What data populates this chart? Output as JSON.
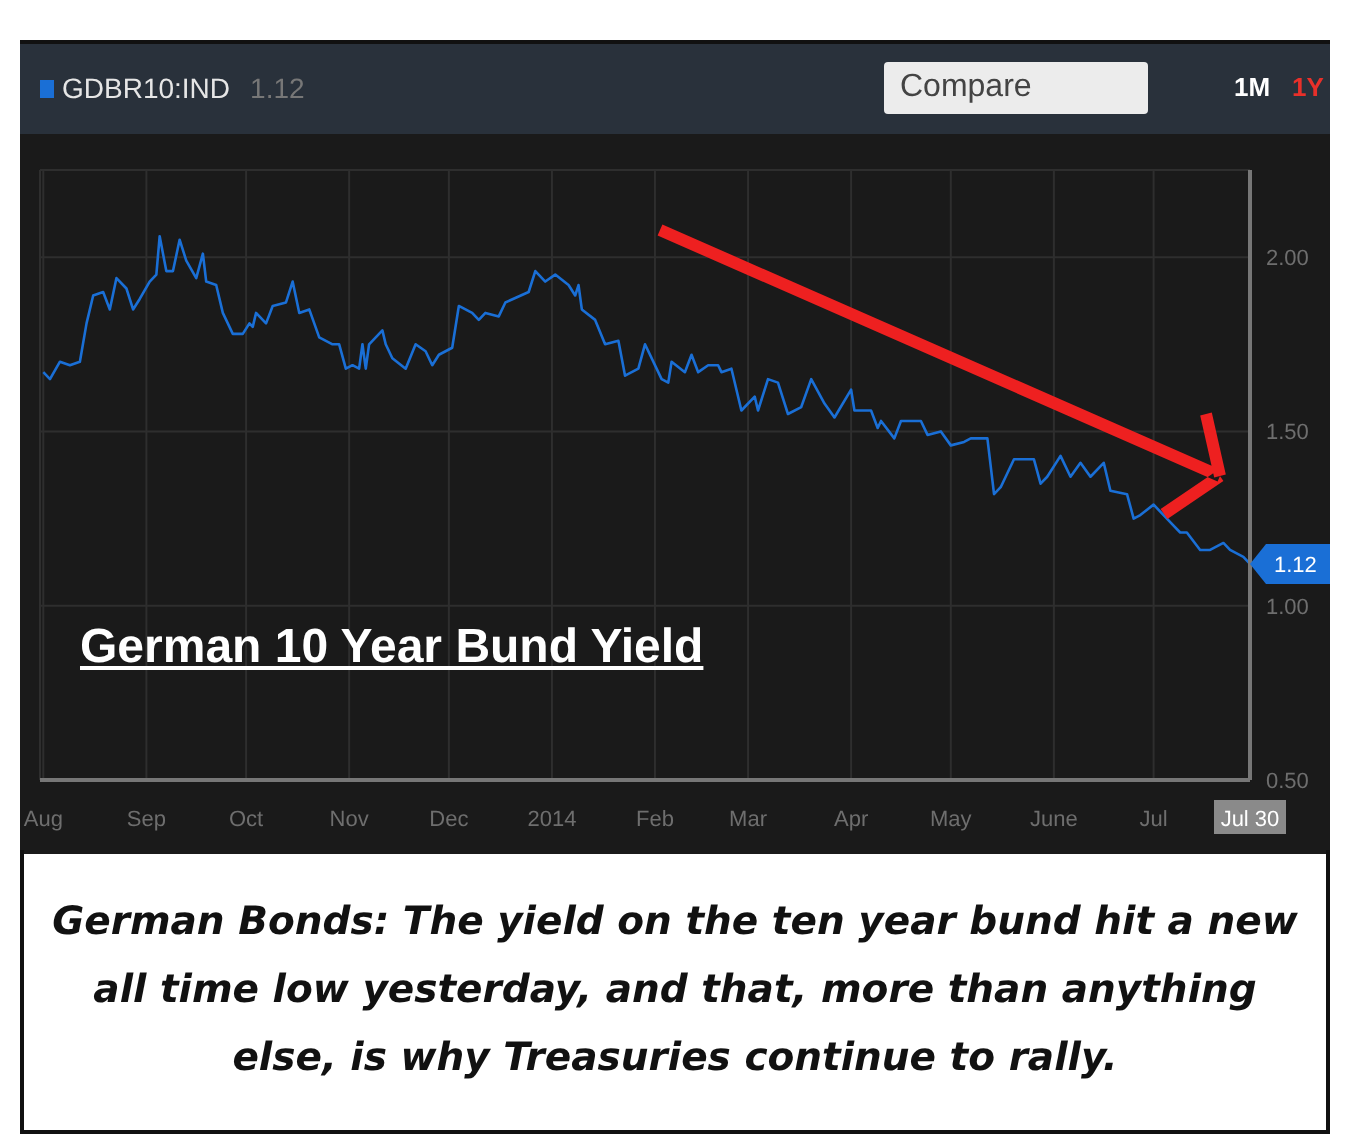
{
  "chart_data": {
    "type": "line",
    "title": "German 10 Year Bund Yield",
    "x": [
      "2013-08-01",
      "2013-08-03",
      "2013-08-06",
      "2013-08-09",
      "2013-08-12",
      "2013-08-14",
      "2013-08-16",
      "2013-08-19",
      "2013-08-21",
      "2013-08-23",
      "2013-08-26",
      "2013-08-28",
      "2013-08-30",
      "2013-09-02",
      "2013-09-04",
      "2013-09-05",
      "2013-09-07",
      "2013-09-09",
      "2013-09-11",
      "2013-09-13",
      "2013-09-16",
      "2013-09-18",
      "2013-09-19",
      "2013-09-22",
      "2013-09-24",
      "2013-09-27",
      "2013-09-30",
      "2013-10-02",
      "2013-10-03",
      "2013-10-04",
      "2013-10-07",
      "2013-10-09",
      "2013-10-13",
      "2013-10-15",
      "2013-10-17",
      "2013-10-20",
      "2013-10-23",
      "2013-10-27",
      "2013-10-29",
      "2013-10-31",
      "2013-11-02",
      "2013-11-04",
      "2013-11-05",
      "2013-11-06",
      "2013-11-07",
      "2013-11-08",
      "2013-11-11",
      "2013-11-12",
      "2013-11-14",
      "2013-11-18",
      "2013-11-21",
      "2013-11-24",
      "2013-11-26",
      "2013-11-28",
      "2013-12-02",
      "2013-12-04",
      "2013-12-08",
      "2013-12-10",
      "2013-12-12",
      "2013-12-16",
      "2013-12-18",
      "2013-12-25",
      "2013-12-27",
      "2013-12-30",
      "2014-01-02",
      "2014-01-06",
      "2014-01-08",
      "2014-01-09",
      "2014-01-10",
      "2014-01-14",
      "2014-01-17",
      "2014-01-21",
      "2014-01-23",
      "2014-01-27",
      "2014-01-29",
      "2014-02-03",
      "2014-02-05",
      "2014-02-06",
      "2014-02-10",
      "2014-02-12",
      "2014-02-14",
      "2014-02-17",
      "2014-02-20",
      "2014-02-21",
      "2014-02-24",
      "2014-02-27",
      "2014-03-03",
      "2014-03-04",
      "2014-03-07",
      "2014-03-10",
      "2014-03-13",
      "2014-03-17",
      "2014-03-20",
      "2014-03-24",
      "2014-03-27",
      "2014-04-01",
      "2014-04-02",
      "2014-04-07",
      "2014-04-09",
      "2014-04-10",
      "2014-04-14",
      "2014-04-16",
      "2014-04-22",
      "2014-04-24",
      "2014-04-28",
      "2014-05-01",
      "2014-05-05",
      "2014-05-07",
      "2014-05-12",
      "2014-05-14",
      "2014-05-16",
      "2014-05-20",
      "2014-05-26",
      "2014-05-28",
      "2014-05-30",
      "2014-06-03",
      "2014-06-06",
      "2014-06-09",
      "2014-06-12",
      "2014-06-16",
      "2014-06-18",
      "2014-06-23",
      "2014-06-25",
      "2014-06-27",
      "2014-07-01",
      "2014-07-03",
      "2014-07-07",
      "2014-07-09",
      "2014-07-11",
      "2014-07-15",
      "2014-07-18",
      "2014-07-22",
      "2014-07-24",
      "2014-07-28",
      "2014-07-30"
    ],
    "series": [
      {
        "name": "GDBR10:IND",
        "color": "#1a6fd6",
        "values": [
          1.67,
          1.65,
          1.7,
          1.69,
          1.7,
          1.81,
          1.89,
          1.9,
          1.85,
          1.94,
          1.91,
          1.85,
          1.88,
          1.93,
          1.95,
          2.06,
          1.96,
          1.96,
          2.05,
          1.99,
          1.94,
          2.01,
          1.93,
          1.92,
          1.84,
          1.78,
          1.78,
          1.81,
          1.8,
          1.84,
          1.81,
          1.86,
          1.87,
          1.93,
          1.84,
          1.85,
          1.77,
          1.75,
          1.75,
          1.68,
          1.69,
          1.68,
          1.75,
          1.68,
          1.75,
          1.76,
          1.79,
          1.75,
          1.71,
          1.68,
          1.75,
          1.73,
          1.69,
          1.72,
          1.74,
          1.86,
          1.84,
          1.82,
          1.84,
          1.83,
          1.87,
          1.9,
          1.96,
          1.93,
          1.95,
          1.92,
          1.89,
          1.92,
          1.85,
          1.82,
          1.75,
          1.76,
          1.66,
          1.68,
          1.75,
          1.65,
          1.64,
          1.7,
          1.67,
          1.72,
          1.67,
          1.69,
          1.69,
          1.67,
          1.68,
          1.56,
          1.6,
          1.56,
          1.65,
          1.64,
          1.55,
          1.57,
          1.65,
          1.58,
          1.54,
          1.62,
          1.56,
          1.56,
          1.51,
          1.53,
          1.48,
          1.53,
          1.53,
          1.49,
          1.5,
          1.46,
          1.47,
          1.48,
          1.48,
          1.32,
          1.34,
          1.42,
          1.42,
          1.35,
          1.37,
          1.43,
          1.37,
          1.41,
          1.37,
          1.41,
          1.33,
          1.32,
          1.25,
          1.26,
          1.29,
          1.27,
          1.23,
          1.21,
          1.21,
          1.16,
          1.16,
          1.18,
          1.16,
          1.14,
          1.12
        ]
      }
    ],
    "xlim": [
      "2013-07-31",
      "2014-07-30"
    ],
    "xticks": [
      {
        "value": "2013-08-01",
        "label": "Aug"
      },
      {
        "value": "2013-09-01",
        "label": "Sep"
      },
      {
        "value": "2013-10-01",
        "label": "Oct"
      },
      {
        "value": "2013-11-01",
        "label": "Nov"
      },
      {
        "value": "2013-12-01",
        "label": "Dec"
      },
      {
        "value": "2014-01-01",
        "label": "2014"
      },
      {
        "value": "2014-02-01",
        "label": "Feb"
      },
      {
        "value": "2014-03-01",
        "label": "Mar"
      },
      {
        "value": "2014-04-01",
        "label": "Apr"
      },
      {
        "value": "2014-05-01",
        "label": "May"
      },
      {
        "value": "2014-06-01",
        "label": "June"
      },
      {
        "value": "2014-07-01",
        "label": "Jul"
      },
      {
        "value": "2014-07-30",
        "label": "Jul 30"
      }
    ],
    "ylim": [
      0.5,
      2.25
    ],
    "yticks": [
      {
        "value": 0.5,
        "label": "0.50"
      },
      {
        "value": 1.0,
        "label": "1.00"
      },
      {
        "value": 1.5,
        "label": "1.50"
      },
      {
        "value": 2.0,
        "label": "2.00"
      }
    ],
    "grid": true,
    "legend": "top left",
    "marker": "none",
    "line_style": "solid",
    "annotations": [
      "1.12",
      "Compare",
      "1M",
      "1Y",
      {
        "text": "1.12",
        "x": "2014-07-30",
        "y": 1.12
      },
      "German Bonds: The yield on the ten year bund hit a new all time low yesterday, and that, more than anything else, is why Treasuries continue to rally."
    ]
  }
}
